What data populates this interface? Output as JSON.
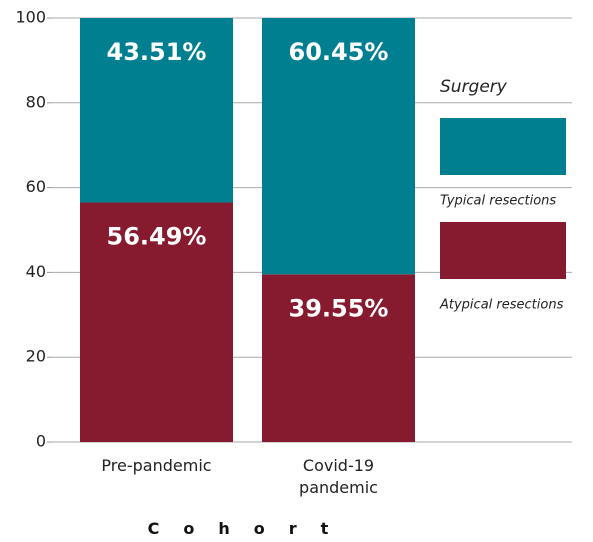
{
  "chart_data": {
    "type": "stacked_bar",
    "categories": [
      "Pre-pandemic",
      "Covid-19 pandemic"
    ],
    "series": [
      {
        "name": "Atypical resections",
        "color": "#861a2f",
        "values": [
          56.49,
          39.55
        ],
        "value_labels": [
          "56.49%",
          "39.55%"
        ]
      },
      {
        "name": "Typical resections",
        "color": "#007f91",
        "values": [
          43.51,
          60.45
        ],
        "value_labels": [
          "43.51%",
          "60.45%"
        ]
      }
    ],
    "xlabel": "Cohort",
    "legend_title": "Surgery",
    "ylim": [
      0,
      100
    ],
    "yticks": [
      0,
      20,
      40,
      60,
      80,
      100
    ],
    "grid": true
  }
}
